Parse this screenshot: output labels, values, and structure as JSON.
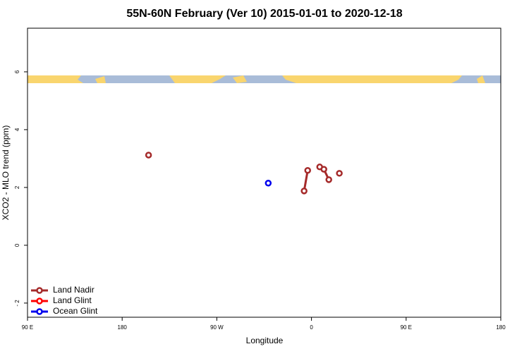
{
  "chart_data": {
    "type": "line",
    "title": "55N-60N February (Ver 10)   2015-01-01 to 2020-12-18",
    "xlabel": "Longitude",
    "ylabel": "XCO2 - MLO trend (ppm)",
    "xlim": [
      90,
      540
    ],
    "xticks": [
      {
        "value": 90,
        "label": "90 E"
      },
      180,
      {
        "value": 270,
        "label": "90 W"
      },
      {
        "value": 360,
        "label": "0"
      },
      {
        "value": 450,
        "label": "90 E"
      },
      {
        "value": 540,
        "label": "180"
      }
    ],
    "ylim": [
      -2.49,
      7.51
    ],
    "yticks": [
      {
        "value": -2,
        "label": "- 2"
      },
      0,
      2,
      4,
      6
    ],
    "legend": "bottom-left",
    "series": [
      {
        "name": "Land Nadir",
        "color": "#a52a2a",
        "x": [
          205.1,
          null,
          353.0,
          356.4,
          null,
          367.8,
          371.8,
          376.5,
          null,
          386.5
        ],
        "values": [
          3.12,
          null,
          1.88,
          2.59,
          null,
          2.71,
          2.63,
          2.27,
          null,
          2.49
        ]
      },
      {
        "name": "Land Glint",
        "color": "#ff0000",
        "x": [],
        "values": []
      },
      {
        "name": "Ocean Glint",
        "color": "#0000ee",
        "x": [
          318.9
        ],
        "values": [
          2.15
        ]
      }
    ]
  }
}
